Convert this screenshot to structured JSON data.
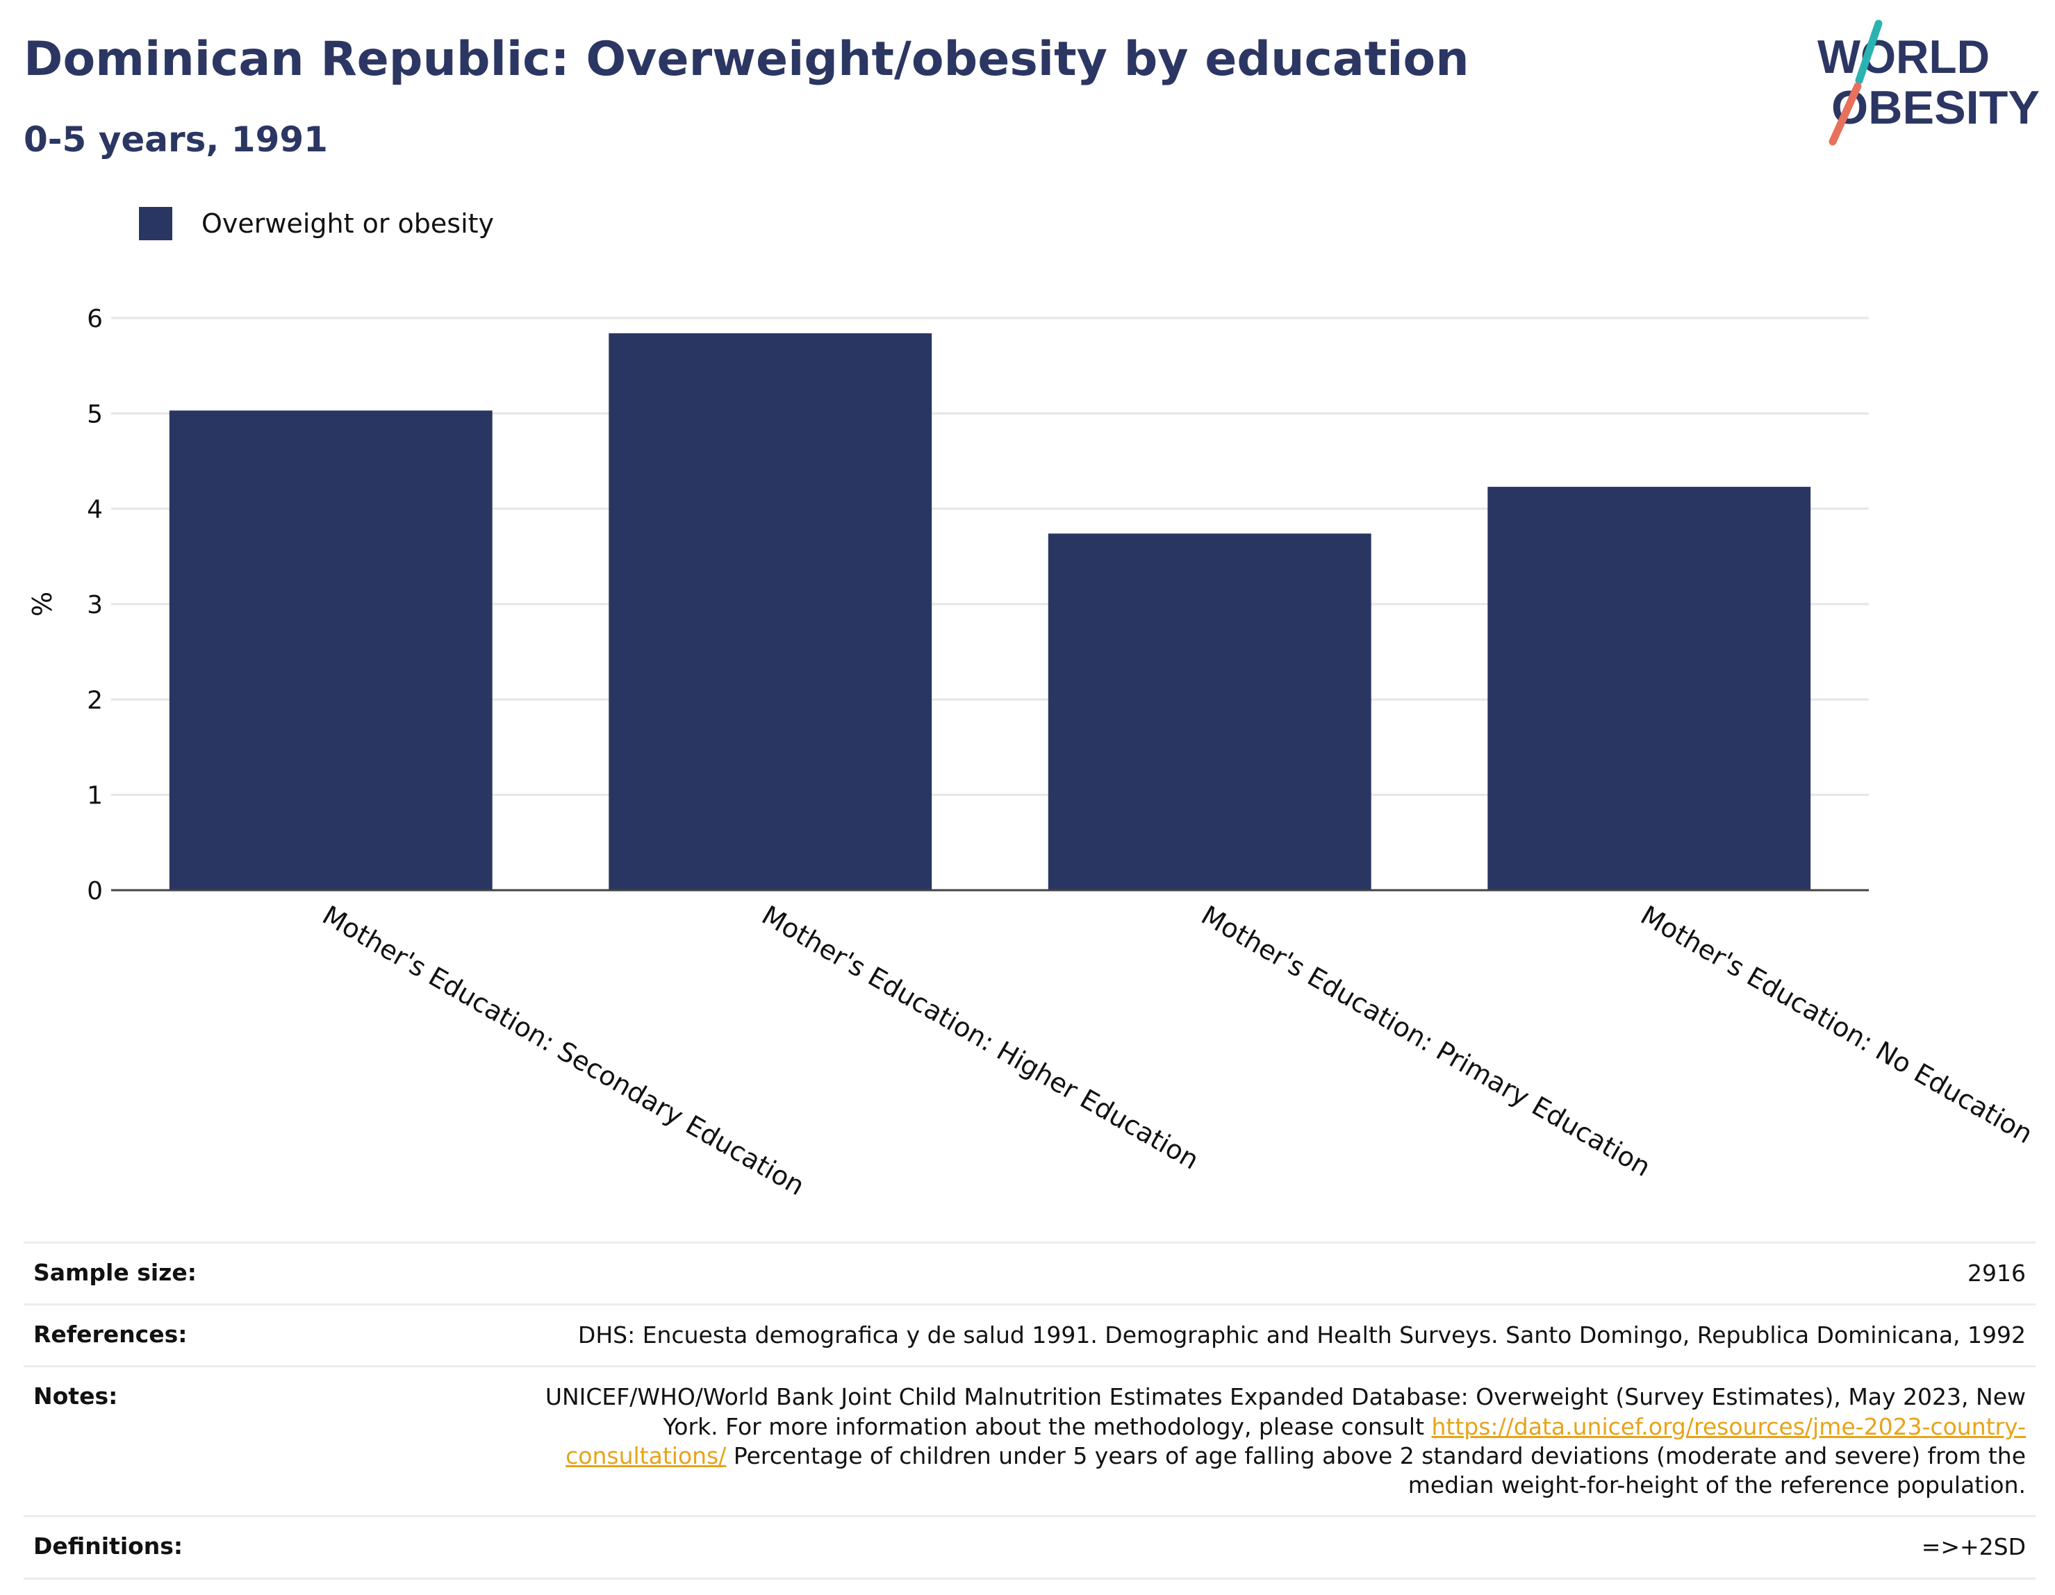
{
  "header": {
    "title": "Dominican Republic: Overweight/obesity by education",
    "subtitle": "0-5 years, 1991"
  },
  "logo": {
    "line1": "WORLD",
    "line2": "OBESITY",
    "colors": {
      "text": "#2b3663",
      "slash_teal": "#2bb3b1",
      "slash_coral": "#e8715b"
    }
  },
  "legend": {
    "label": "Overweight or obesity",
    "color": "#2a3662"
  },
  "chart_data": {
    "type": "bar",
    "categories": [
      "Mother's Education: Secondary Education",
      "Mother's Education: Higher Education",
      "Mother's Education: Primary Education",
      "Mother's Education: No Education"
    ],
    "series": [
      {
        "name": "Overweight or obesity",
        "values": [
          5.03,
          5.84,
          3.74,
          4.23
        ],
        "color": "#2a3662"
      }
    ],
    "ylabel": "%",
    "ylim": [
      0,
      6
    ],
    "yticks": [
      "0",
      "1",
      "2",
      "3",
      "4",
      "5",
      "6"
    ],
    "grid": true,
    "legend_position": "top-left"
  },
  "footer": {
    "sample_size": {
      "label": "Sample size:",
      "value": "2916"
    },
    "references": {
      "label": "References:",
      "value": "DHS: Encuesta demografica y de salud 1991. Demographic and Health Surveys. Santo Domingo, Republica Dominicana, 1992"
    },
    "notes": {
      "label": "Notes:",
      "text_before": "UNICEF/WHO/World Bank Joint Child Malnutrition Estimates Expanded Database: Overweight (Survey Estimates), May 2023, New York. For more information about the methodology, please consult ",
      "link": "https://data.unicef.org/resources/jme-2023-country-consultations/",
      "text_after": " Percentage of children under 5 years of age falling above 2 standard deviations (moderate and severe) from the median weight-for-height of the reference population."
    },
    "definitions": {
      "label": "Definitions:",
      "value": "=>+2SD"
    }
  }
}
